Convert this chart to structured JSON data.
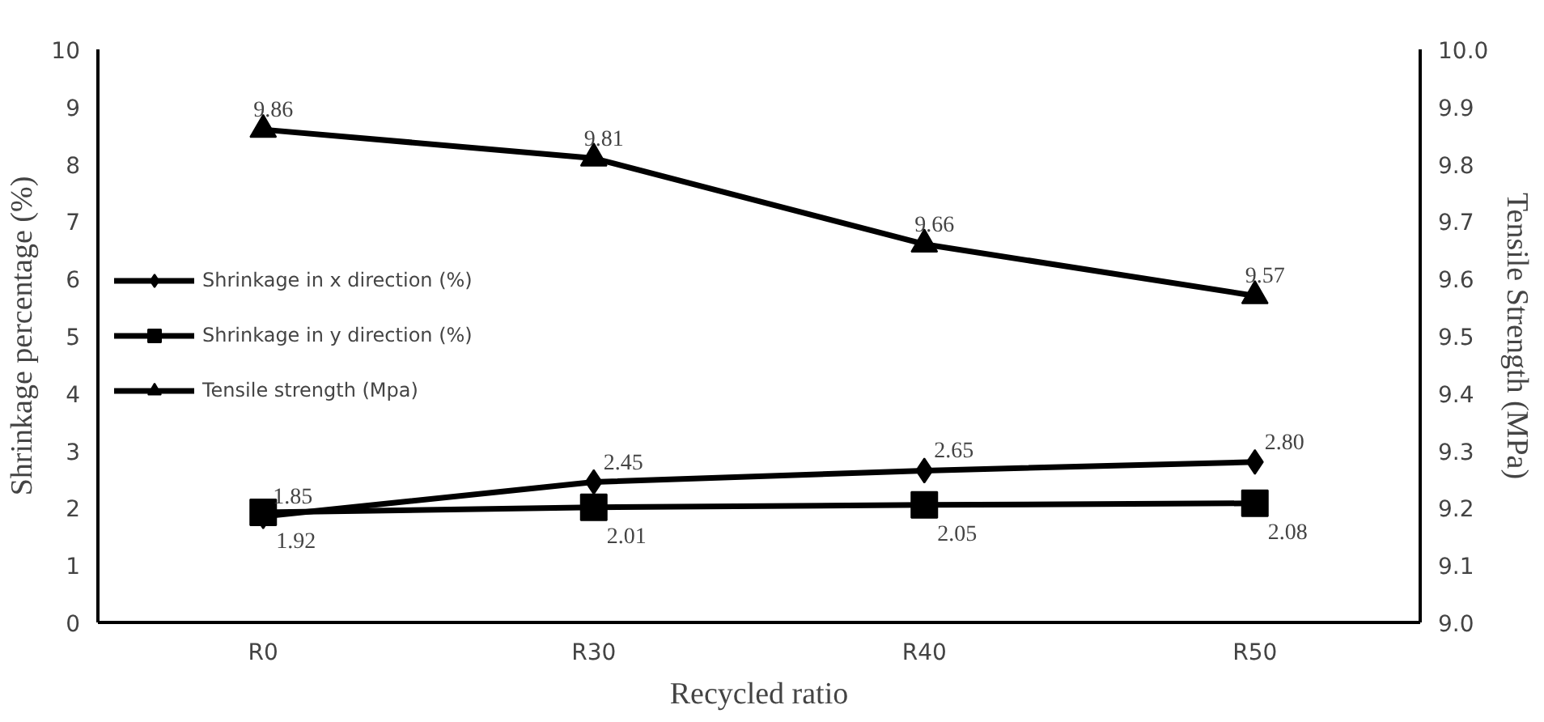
{
  "chart_data": {
    "type": "line",
    "xlabel": "Recycled ratio",
    "ylabel": "Shrinkage percentage (%)",
    "y2label": "Tensile Strength (MPa)",
    "categories": [
      "R0",
      "R30",
      "R40",
      "R50"
    ],
    "series": [
      {
        "name": "Shrinkage in x direction (%)",
        "color": "#000000",
        "marker": "diamond",
        "values": [
          1.85,
          2.45,
          2.65,
          2.8
        ],
        "value_labels": [
          "1.85",
          "2.45",
          "2.65",
          "2.80"
        ]
      },
      {
        "name": "Shrinkage in y direction (%)",
        "color": "#000000",
        "marker": "square",
        "values": [
          1.92,
          2.01,
          2.05,
          2.08
        ],
        "value_labels": [
          "1.92",
          "2.01",
          "2.05",
          "2.08"
        ]
      },
      {
        "name": "Tensile strength (Mpa)",
        "color": "#000000",
        "marker": "triangle",
        "axis": "y2",
        "values": [
          9.86,
          9.81,
          9.66,
          9.57
        ],
        "value_labels": [
          "9.86",
          "9.81",
          "9.66",
          "9.57"
        ]
      }
    ],
    "ylim": [
      0,
      10
    ],
    "yticks": [
      0,
      1,
      2,
      3,
      4,
      5,
      6,
      7,
      8,
      9,
      10
    ],
    "y2lim": [
      9.0,
      10.0
    ],
    "y2ticks": [
      {
        "value": 9.0,
        "label": "9.0"
      },
      {
        "value": 9.1,
        "label": "9.1"
      },
      {
        "value": 9.2,
        "label": "9.2"
      },
      {
        "value": 9.3,
        "label": "9.3"
      },
      {
        "value": 9.4,
        "label": "9.4"
      },
      {
        "value": 9.5,
        "label": "9.5"
      },
      {
        "value": 9.6,
        "label": "9.6"
      },
      {
        "value": 9.7,
        "label": "9.7"
      },
      {
        "value": 9.8,
        "label": "9.8"
      },
      {
        "value": 9.9,
        "label": "9.9"
      },
      {
        "value": 10.0,
        "label": "10.0"
      }
    ],
    "grid": false,
    "legend": "left",
    "line_style": "solid"
  }
}
